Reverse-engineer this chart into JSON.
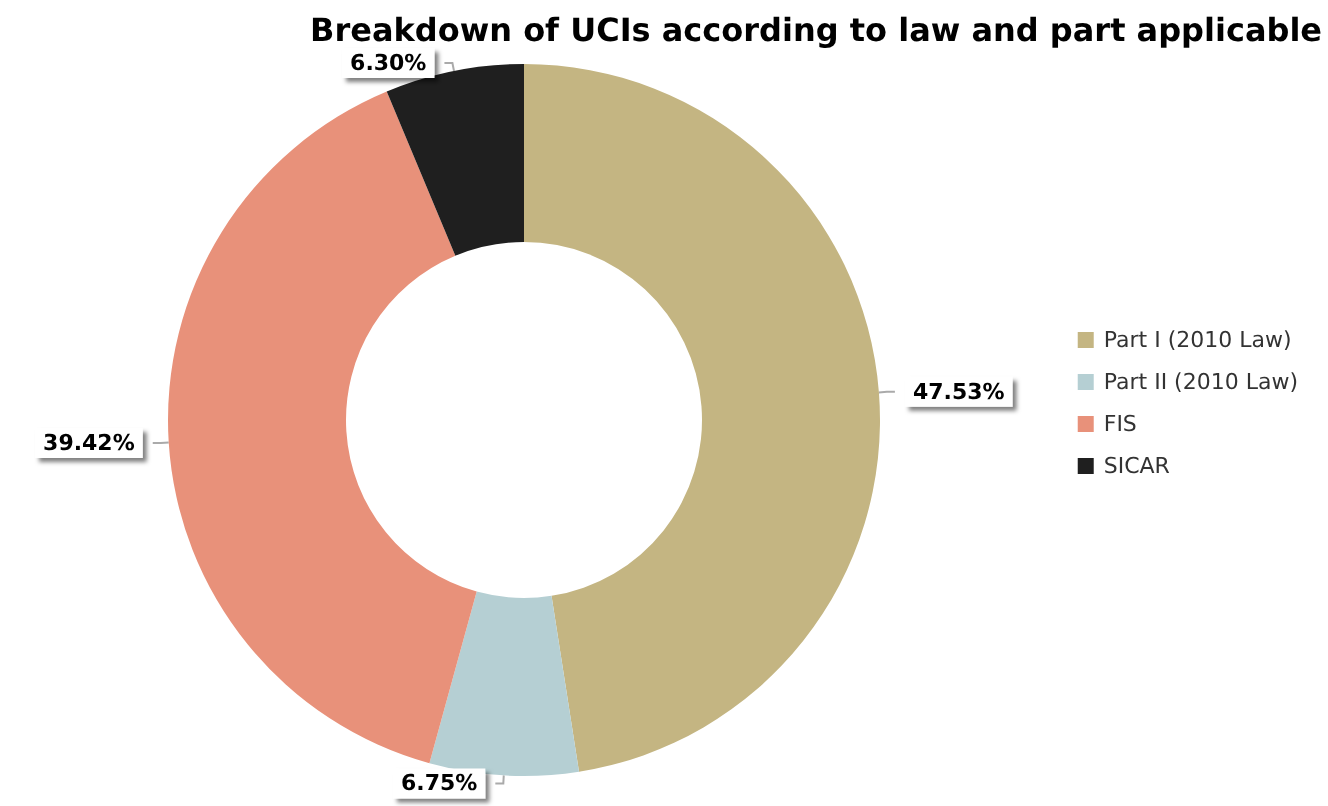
{
  "chart_data": {
    "type": "donut",
    "title": "Breakdown of UCIs according to law and part applicable",
    "categories": [
      "Part I (2010 Law)",
      "Part II (2010 Law)",
      "FIS",
      "SICAR"
    ],
    "values": [
      47.53,
      6.75,
      39.42,
      6.3
    ],
    "colors": [
      "#c4b582",
      "#b5cfd3",
      "#e8917a",
      "#1f1f1f"
    ],
    "value_labels": [
      "47.53%",
      "6.75%",
      "39.42%",
      "6.30%"
    ],
    "legend": "right"
  }
}
